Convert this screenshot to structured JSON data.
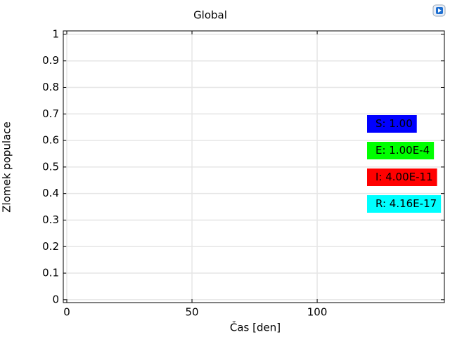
{
  "chart_data": {
    "type": "line",
    "title": "Global",
    "x_label": "Čas [den]",
    "y_label": "Zlomek populace",
    "xlim": [
      -1.4,
      150.8
    ],
    "xticks": [
      0,
      50,
      100
    ],
    "ylim": [
      -0.011,
      1.013
    ],
    "yticks": [
      0,
      0.1,
      0.2,
      0.3,
      0.4,
      0.5,
      0.6,
      0.7,
      0.8,
      0.9,
      1
    ],
    "grid": true,
    "annotations": [
      {
        "text": "S: 1.00",
        "color": "#0000ff"
      },
      {
        "text": "E: 1.00E-4",
        "color": "#00ff00"
      },
      {
        "text": "I: 4.00E-11",
        "color": "#ff0000"
      },
      {
        "text": "R: 4.16E-17",
        "color": "#00ffff"
      }
    ]
  }
}
